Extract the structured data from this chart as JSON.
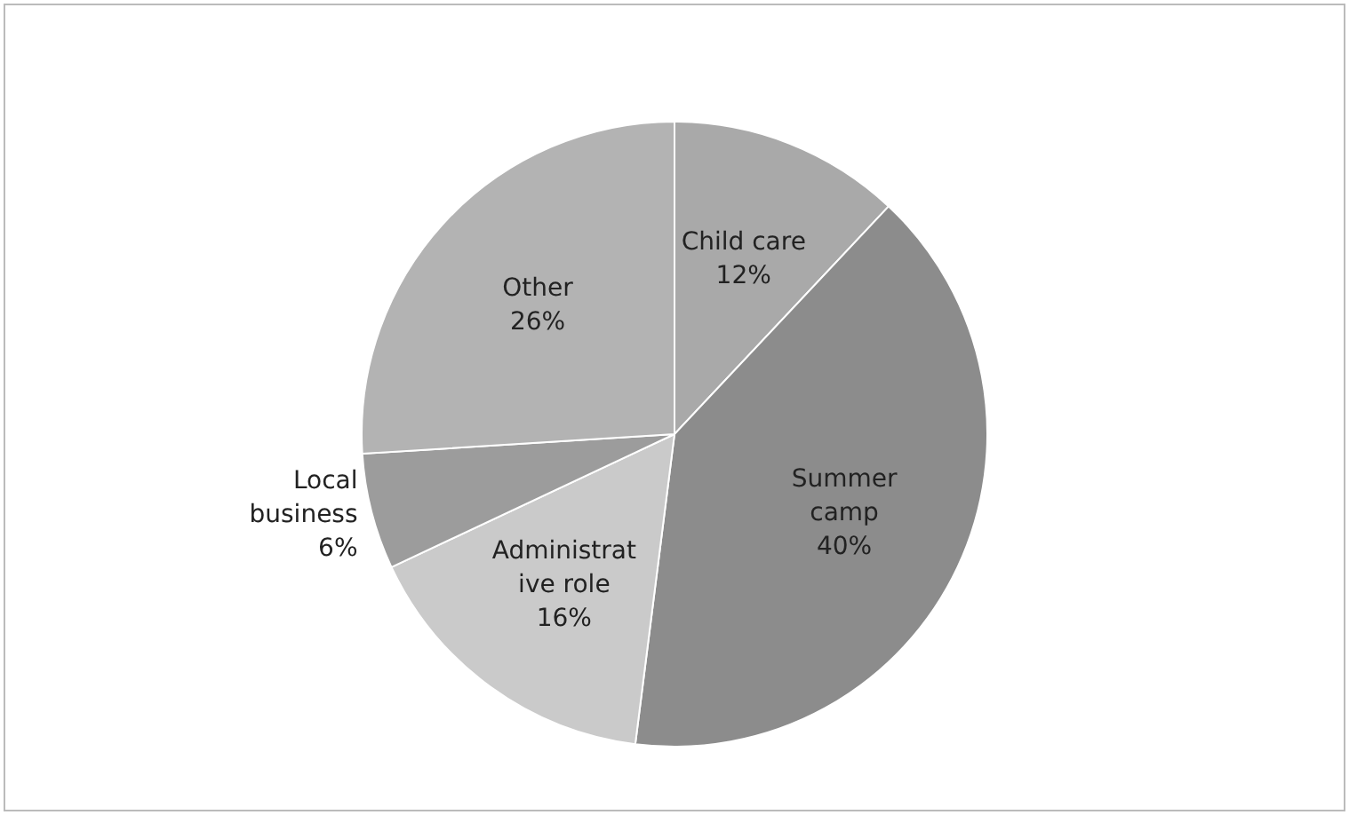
{
  "chart_data": {
    "type": "pie",
    "categories": [
      "Child care",
      "Summer camp",
      "Administrative role",
      "Local business",
      "Other"
    ],
    "values": [
      12,
      40,
      16,
      6,
      26
    ],
    "colors": [
      "#a9a9a9",
      "#8c8c8c",
      "#cacaca",
      "#9c9c9c",
      "#b3b3b3"
    ],
    "value_labels": [
      "12%",
      "40%",
      "16%",
      "6%",
      "26%"
    ],
    "legend": false
  }
}
